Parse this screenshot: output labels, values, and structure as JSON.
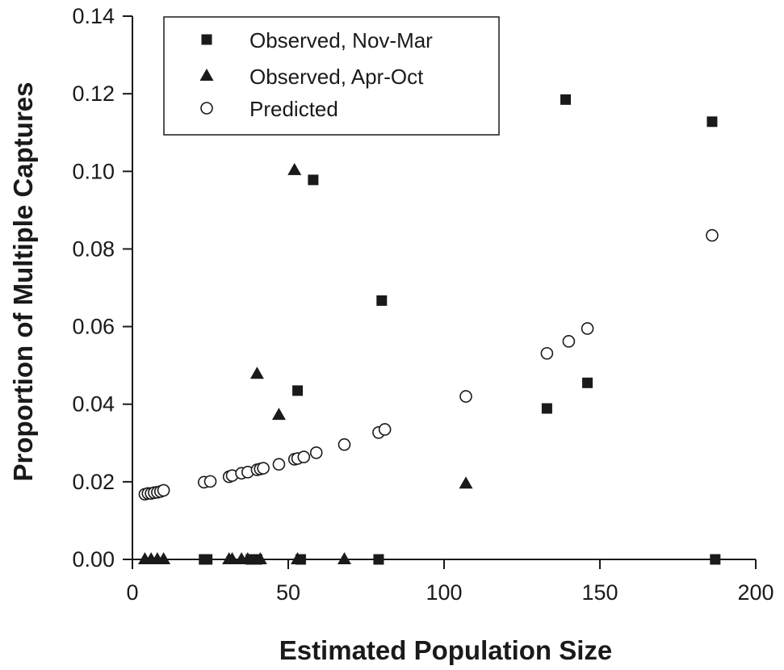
{
  "chart_data": {
    "type": "scatter",
    "xlabel": "Estimated Population Size",
    "ylabel": "Proportion of Multiple Captures",
    "xlim": [
      0,
      200
    ],
    "ylim": [
      0,
      0.14
    ],
    "x_ticks": [
      "0",
      "50",
      "100",
      "150",
      "200"
    ],
    "y_ticks": [
      "0.00",
      "0.02",
      "0.04",
      "0.06",
      "0.08",
      "0.10",
      "0.12",
      "0.14"
    ],
    "grid": false,
    "legend_position": "top-left",
    "series": [
      {
        "name": "Observed, Nov-Mar",
        "marker": "square",
        "color": "#1a1a1a",
        "points": [
          [
            58,
            0.0978
          ],
          [
            80,
            0.0667
          ],
          [
            53,
            0.0435
          ],
          [
            139,
            0.1185
          ],
          [
            186,
            0.1128
          ],
          [
            146,
            0.0455
          ],
          [
            133,
            0.0389
          ],
          [
            23,
            0.0
          ],
          [
            24,
            0.0
          ],
          [
            38,
            0.0
          ],
          [
            40,
            0.0
          ],
          [
            54,
            0.0
          ],
          [
            79,
            0.0
          ],
          [
            187,
            0.0
          ]
        ]
      },
      {
        "name": "Observed, Apr-Oct",
        "marker": "triangle",
        "color": "#1a1a1a",
        "points": [
          [
            52,
            0.1003
          ],
          [
            40,
            0.0478
          ],
          [
            47,
            0.0372
          ],
          [
            107,
            0.0195
          ],
          [
            4,
            0.0
          ],
          [
            6,
            0.0
          ],
          [
            8,
            0.0
          ],
          [
            10,
            0.0
          ],
          [
            31,
            0.0
          ],
          [
            32,
            0.0
          ],
          [
            35,
            0.0
          ],
          [
            37,
            0.0
          ],
          [
            41,
            0.0
          ],
          [
            53,
            0.0
          ],
          [
            68,
            0.0
          ]
        ]
      },
      {
        "name": "Predicted",
        "marker": "circle-open",
        "color": "#1a1a1a",
        "points": [
          [
            4,
            0.0168
          ],
          [
            5,
            0.017
          ],
          [
            6,
            0.017
          ],
          [
            7,
            0.0172
          ],
          [
            8,
            0.0173
          ],
          [
            9,
            0.0175
          ],
          [
            10,
            0.0178
          ],
          [
            23,
            0.0199
          ],
          [
            25,
            0.0201
          ],
          [
            31,
            0.0213
          ],
          [
            32,
            0.0216
          ],
          [
            35,
            0.0222
          ],
          [
            37,
            0.0225
          ],
          [
            40,
            0.0231
          ],
          [
            41,
            0.0233
          ],
          [
            42,
            0.0235
          ],
          [
            47,
            0.0245
          ],
          [
            52,
            0.0258
          ],
          [
            53,
            0.026
          ],
          [
            55,
            0.0264
          ],
          [
            59,
            0.0275
          ],
          [
            68,
            0.0296
          ],
          [
            79,
            0.0327
          ],
          [
            81,
            0.0335
          ],
          [
            107,
            0.042
          ],
          [
            133,
            0.0531
          ],
          [
            140,
            0.0562
          ],
          [
            146,
            0.0595
          ],
          [
            186,
            0.0835
          ]
        ]
      }
    ]
  }
}
